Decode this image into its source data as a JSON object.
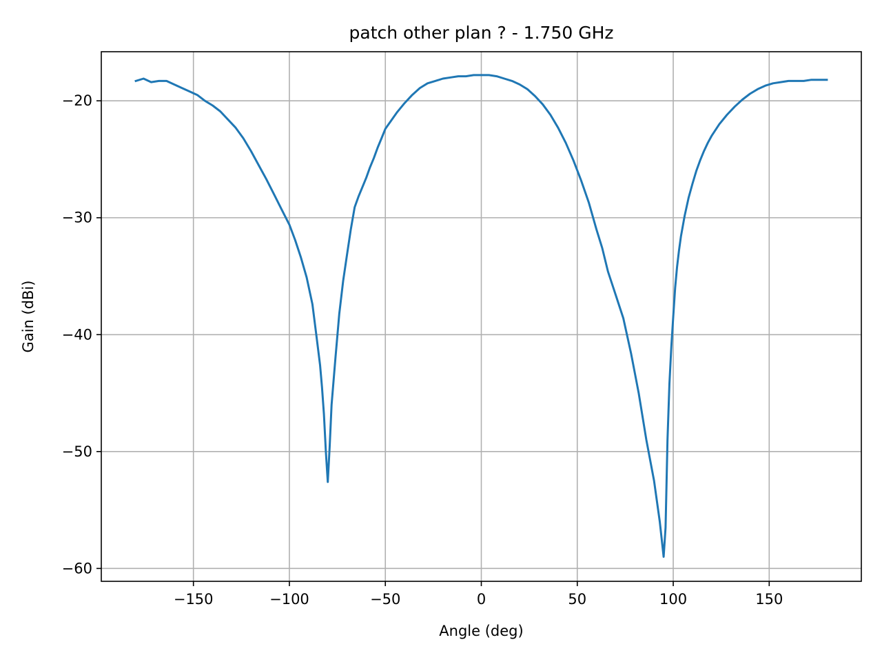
{
  "chart_data": {
    "type": "line",
    "title": "patch other plan ? - 1.750 GHz",
    "xlabel": "Angle (deg)",
    "ylabel": "Gain (dBi)",
    "xlim": [
      -198,
      198
    ],
    "ylim": [
      -61.1,
      -15.8
    ],
    "xticks": [
      -150,
      -100,
      -50,
      0,
      50,
      100,
      150
    ],
    "xtick_labels": [
      "−150",
      "−100",
      "−50",
      "0",
      "50",
      "100",
      "150"
    ],
    "yticks": [
      -20,
      -30,
      -40,
      -50,
      -60
    ],
    "ytick_labels": [
      "−20",
      "−30",
      "−40",
      "−50",
      "−60"
    ],
    "grid": true,
    "series": [
      {
        "color": "#1f77b4",
        "x": [
          -180,
          -176,
          -172,
          -168,
          -164,
          -160,
          -156,
          -152,
          -148,
          -144,
          -140,
          -136,
          -132,
          -128,
          -124,
          -120,
          -116,
          -112,
          -108,
          -104,
          -100,
          -97,
          -94,
          -91,
          -88,
          -86,
          -84,
          -83,
          -82,
          -81,
          -80,
          -79,
          -78,
          -76,
          -74,
          -72,
          -70,
          -68,
          -66,
          -64,
          -62,
          -60,
          -58,
          -56,
          -54,
          -52,
          -50,
          -47,
          -44,
          -40,
          -36,
          -32,
          -28,
          -24,
          -20,
          -16,
          -12,
          -8,
          -4,
          0,
          4,
          8,
          12,
          16,
          20,
          24,
          28,
          32,
          36,
          40,
          44,
          48,
          52,
          56,
          60,
          63,
          66,
          70,
          74,
          78,
          82,
          86,
          90,
          93,
          95,
          96,
          97,
          98,
          99,
          100,
          101,
          102,
          103,
          104,
          106,
          108,
          110,
          112,
          114,
          116,
          118,
          120,
          124,
          128,
          132,
          136,
          140,
          144,
          148,
          152,
          156,
          160,
          164,
          168,
          172,
          176,
          180
        ],
        "y": [
          -18.3,
          -18.1,
          -18.4,
          -18.3,
          -18.3,
          -18.6,
          -18.9,
          -19.2,
          -19.5,
          -20.0,
          -20.4,
          -20.9,
          -21.6,
          -22.3,
          -23.2,
          -24.3,
          -25.5,
          -26.7,
          -28.0,
          -29.3,
          -30.6,
          -31.9,
          -33.4,
          -35.1,
          -37.4,
          -40.0,
          -42.6,
          -44.5,
          -46.8,
          -50.0,
          -52.6,
          -49.5,
          -46.0,
          -42.0,
          -38.2,
          -35.4,
          -33.2,
          -31.0,
          -29.1,
          -28.2,
          -27.4,
          -26.6,
          -25.7,
          -24.9,
          -24.0,
          -23.2,
          -22.4,
          -21.7,
          -21.0,
          -20.2,
          -19.5,
          -18.9,
          -18.5,
          -18.3,
          -18.1,
          -18.0,
          -17.9,
          -17.9,
          -17.8,
          -17.8,
          -17.8,
          -17.9,
          -18.1,
          -18.3,
          -18.6,
          -19.0,
          -19.6,
          -20.3,
          -21.2,
          -22.3,
          -23.6,
          -25.1,
          -26.8,
          -28.7,
          -31.0,
          -32.6,
          -34.6,
          -36.6,
          -38.6,
          -41.6,
          -45.0,
          -49.0,
          -52.5,
          -56.0,
          -59.0,
          -56.5,
          -49.0,
          -44.2,
          -41.0,
          -38.5,
          -36.0,
          -34.2,
          -32.8,
          -31.6,
          -29.8,
          -28.3,
          -27.1,
          -26.0,
          -25.1,
          -24.3,
          -23.6,
          -23.0,
          -22.0,
          -21.2,
          -20.5,
          -19.9,
          -19.4,
          -19.0,
          -18.7,
          -18.5,
          -18.4,
          -18.3,
          -18.3,
          -18.3,
          -18.2,
          -18.2,
          -18.2
        ]
      }
    ]
  }
}
